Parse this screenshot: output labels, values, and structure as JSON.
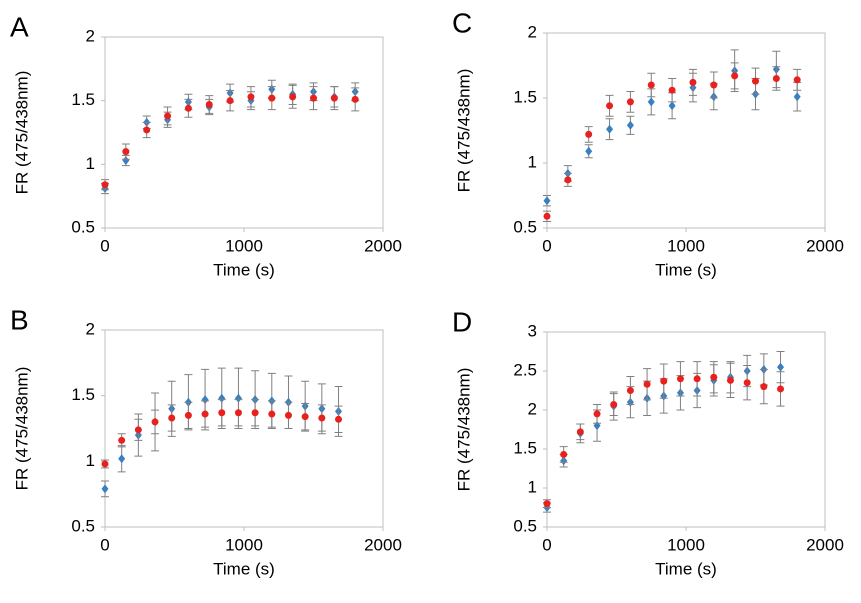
{
  "chart_data": [
    {
      "type": "scatter",
      "label": "A",
      "xlabel": "Time (s)",
      "ylabel": "FR (475/438nm)",
      "x": [
        0,
        150,
        300,
        450,
        600,
        750,
        900,
        1050,
        1200,
        1350,
        1500,
        1650,
        1800
      ],
      "xlim": [
        0,
        2000
      ],
      "xticks": [
        0,
        1000,
        2000
      ],
      "ylim": [
        0.5,
        2
      ],
      "yticks": [
        0.5,
        1,
        1.5,
        2
      ],
      "series": [
        {
          "color": "#3a7fc1",
          "marker": "diamond",
          "values": [
            0.81,
            1.03,
            1.33,
            1.35,
            1.49,
            1.45,
            1.56,
            1.5,
            1.59,
            1.55,
            1.57,
            1.53,
            1.57
          ],
          "errors": [
            0.04,
            0.04,
            0.05,
            0.06,
            0.06,
            0.06,
            0.07,
            0.07,
            0.07,
            0.08,
            0.07,
            0.08,
            0.07
          ]
        },
        {
          "color": "#e8211f",
          "marker": "circle",
          "values": [
            0.84,
            1.1,
            1.27,
            1.38,
            1.44,
            1.47,
            1.5,
            1.53,
            1.52,
            1.53,
            1.52,
            1.52,
            1.51
          ],
          "errors": [
            0.04,
            0.06,
            0.06,
            0.07,
            0.07,
            0.07,
            0.08,
            0.08,
            0.09,
            0.09,
            0.09,
            0.09,
            0.09
          ]
        }
      ]
    },
    {
      "type": "scatter",
      "label": "C",
      "xlabel": "Time (s)",
      "ylabel": "FR (475/438nm)",
      "x": [
        0,
        150,
        300,
        450,
        600,
        750,
        900,
        1050,
        1200,
        1350,
        1500,
        1650,
        1800
      ],
      "xlim": [
        0,
        2000
      ],
      "xticks": [
        0,
        1000,
        2000
      ],
      "ylim": [
        0.5,
        2
      ],
      "yticks": [
        0.5,
        1,
        1.5,
        2
      ],
      "series": [
        {
          "color": "#3a7fc1",
          "marker": "diamond",
          "values": [
            0.71,
            0.92,
            1.09,
            1.26,
            1.29,
            1.47,
            1.44,
            1.58,
            1.51,
            1.71,
            1.53,
            1.72,
            1.51
          ],
          "errors": [
            0.04,
            0.06,
            0.05,
            0.08,
            0.07,
            0.1,
            0.1,
            0.11,
            0.1,
            0.16,
            0.12,
            0.14,
            0.11
          ]
        },
        {
          "color": "#e8211f",
          "marker": "circle",
          "values": [
            0.59,
            0.87,
            1.22,
            1.44,
            1.47,
            1.6,
            1.56,
            1.62,
            1.6,
            1.67,
            1.63,
            1.65,
            1.64
          ],
          "errors": [
            0.04,
            0.05,
            0.06,
            0.08,
            0.08,
            0.09,
            0.09,
            0.1,
            0.1,
            0.1,
            0.1,
            0.09,
            0.08
          ]
        }
      ]
    },
    {
      "type": "scatter",
      "label": "B",
      "xlabel": "Time (s)",
      "ylabel": "FR (475/438nm)",
      "x": [
        0,
        120,
        240,
        360,
        480,
        600,
        720,
        840,
        960,
        1080,
        1200,
        1320,
        1440,
        1560,
        1680
      ],
      "xlim": [
        0,
        2000
      ],
      "xticks": [
        0,
        1000,
        2000
      ],
      "ylim": [
        0.5,
        2
      ],
      "yticks": [
        0.5,
        1,
        1.5,
        2
      ],
      "series": [
        {
          "color": "#3a7fc1",
          "marker": "diamond",
          "values": [
            0.79,
            1.02,
            1.2,
            1.3,
            1.4,
            1.45,
            1.47,
            1.48,
            1.48,
            1.47,
            1.46,
            1.45,
            1.42,
            1.4,
            1.38
          ],
          "errors": [
            0.06,
            0.1,
            0.16,
            0.22,
            0.21,
            0.21,
            0.23,
            0.23,
            0.23,
            0.22,
            0.21,
            0.2,
            0.19,
            0.19,
            0.19
          ]
        },
        {
          "color": "#e8211f",
          "marker": "circle",
          "values": [
            0.98,
            1.16,
            1.24,
            1.3,
            1.33,
            1.35,
            1.36,
            1.37,
            1.37,
            1.37,
            1.36,
            1.35,
            1.34,
            1.33,
            1.32
          ],
          "errors": [
            0.03,
            0.05,
            0.08,
            0.09,
            0.1,
            0.1,
            0.1,
            0.1,
            0.1,
            0.1,
            0.1,
            0.1,
            0.1,
            0.1,
            0.1
          ]
        }
      ]
    },
    {
      "type": "scatter",
      "label": "D",
      "xlabel": "Time (s)",
      "ylabel": "FR (475/438nm)",
      "x": [
        0,
        120,
        240,
        360,
        480,
        600,
        720,
        840,
        960,
        1080,
        1200,
        1320,
        1440,
        1560,
        1680
      ],
      "xlim": [
        0,
        2000
      ],
      "xticks": [
        0,
        1000,
        2000
      ],
      "ylim": [
        0.5,
        3
      ],
      "yticks": [
        0.5,
        1,
        1.5,
        2,
        2.5,
        3
      ],
      "series": [
        {
          "color": "#3a7fc1",
          "marker": "diamond",
          "values": [
            0.75,
            1.35,
            1.7,
            1.8,
            2.05,
            2.1,
            2.15,
            2.18,
            2.22,
            2.25,
            2.38,
            2.42,
            2.5,
            2.52,
            2.55
          ],
          "errors": [
            0.06,
            0.08,
            0.12,
            0.2,
            0.18,
            0.2,
            0.22,
            0.22,
            0.22,
            0.22,
            0.2,
            0.2,
            0.2,
            0.2,
            0.2
          ]
        },
        {
          "color": "#e8211f",
          "marker": "circle",
          "values": [
            0.8,
            1.43,
            1.72,
            1.95,
            2.07,
            2.25,
            2.33,
            2.37,
            2.4,
            2.4,
            2.42,
            2.38,
            2.35,
            2.3,
            2.27
          ],
          "errors": [
            0.05,
            0.1,
            0.1,
            0.12,
            0.14,
            0.18,
            0.2,
            0.22,
            0.22,
            0.22,
            0.2,
            0.22,
            0.22,
            0.22,
            0.22
          ]
        }
      ]
    }
  ]
}
